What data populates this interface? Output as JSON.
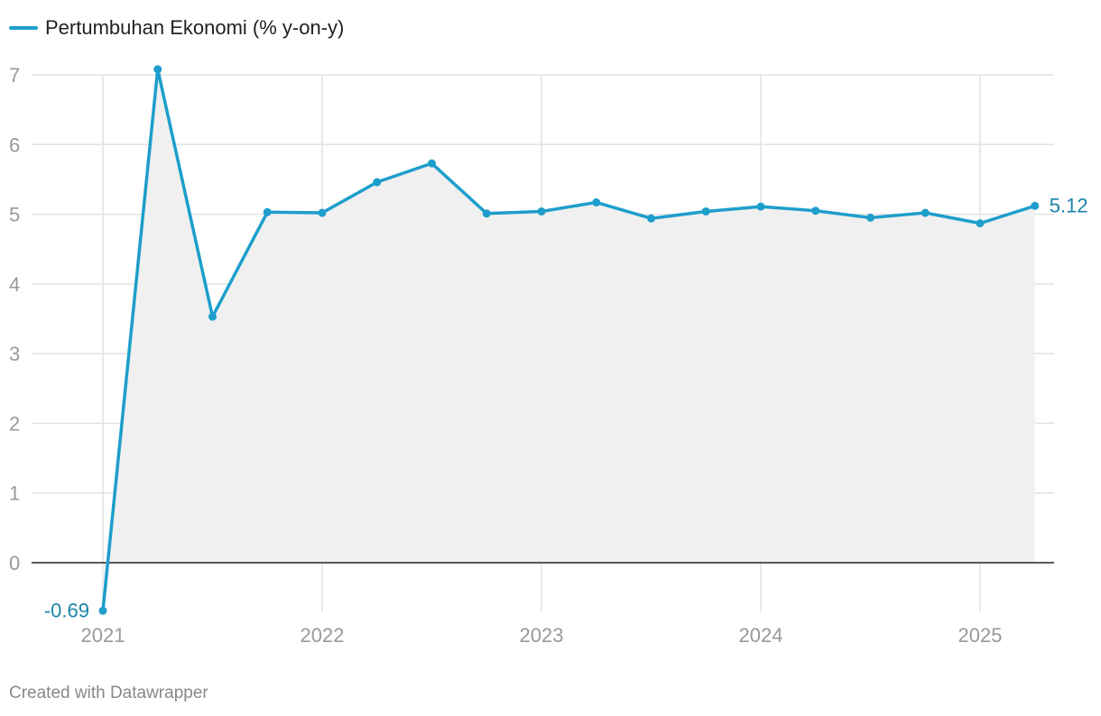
{
  "chart_data": {
    "type": "area",
    "series": [
      {
        "name": "Pertumbuhan Ekonomi (% y-on-y)",
        "color": "#1d9ecb",
        "x": [
          2021.0,
          2021.25,
          2021.5,
          2021.75,
          2022.0,
          2022.25,
          2022.5,
          2022.75,
          2023.0,
          2023.25,
          2023.5,
          2023.75,
          2024.0,
          2024.25,
          2024.5,
          2024.75,
          2025.0,
          2025.25
        ],
        "values": [
          -0.69,
          7.08,
          3.53,
          5.03,
          5.02,
          5.46,
          5.73,
          5.01,
          5.04,
          5.17,
          4.94,
          5.04,
          5.11,
          5.05,
          4.95,
          5.02,
          4.87,
          5.12
        ]
      }
    ],
    "x_ticks": [
      2021,
      2022,
      2023,
      2024,
      2025
    ],
    "x_tick_labels": [
      "2021",
      "2022",
      "2023",
      "2024",
      "2025"
    ],
    "y_ticks": [
      0,
      1,
      2,
      3,
      4,
      5,
      6,
      7
    ],
    "y_tick_labels": [
      "0",
      "1",
      "2",
      "3",
      "4",
      "5",
      "6",
      "7"
    ],
    "xlim": [
      2020.72,
      2025.33
    ],
    "ylim": [
      -0.69,
      7
    ],
    "data_labels": [
      {
        "index": 0,
        "text": "-0.69",
        "side": "left"
      },
      {
        "index": 17,
        "text": "5.12",
        "side": "right"
      }
    ],
    "title": "",
    "xlabel": "",
    "ylabel": "",
    "grid": true,
    "legend_position": "top-left",
    "colors": {
      "line": "#1d9ecb",
      "area": "#f0f0f0",
      "grid": "#e2e2e2",
      "zero_line": "#222222",
      "tick_text": "#999999",
      "label_text": "#1a84a8"
    }
  },
  "footer": {
    "credit": "Created with Datawrapper"
  }
}
